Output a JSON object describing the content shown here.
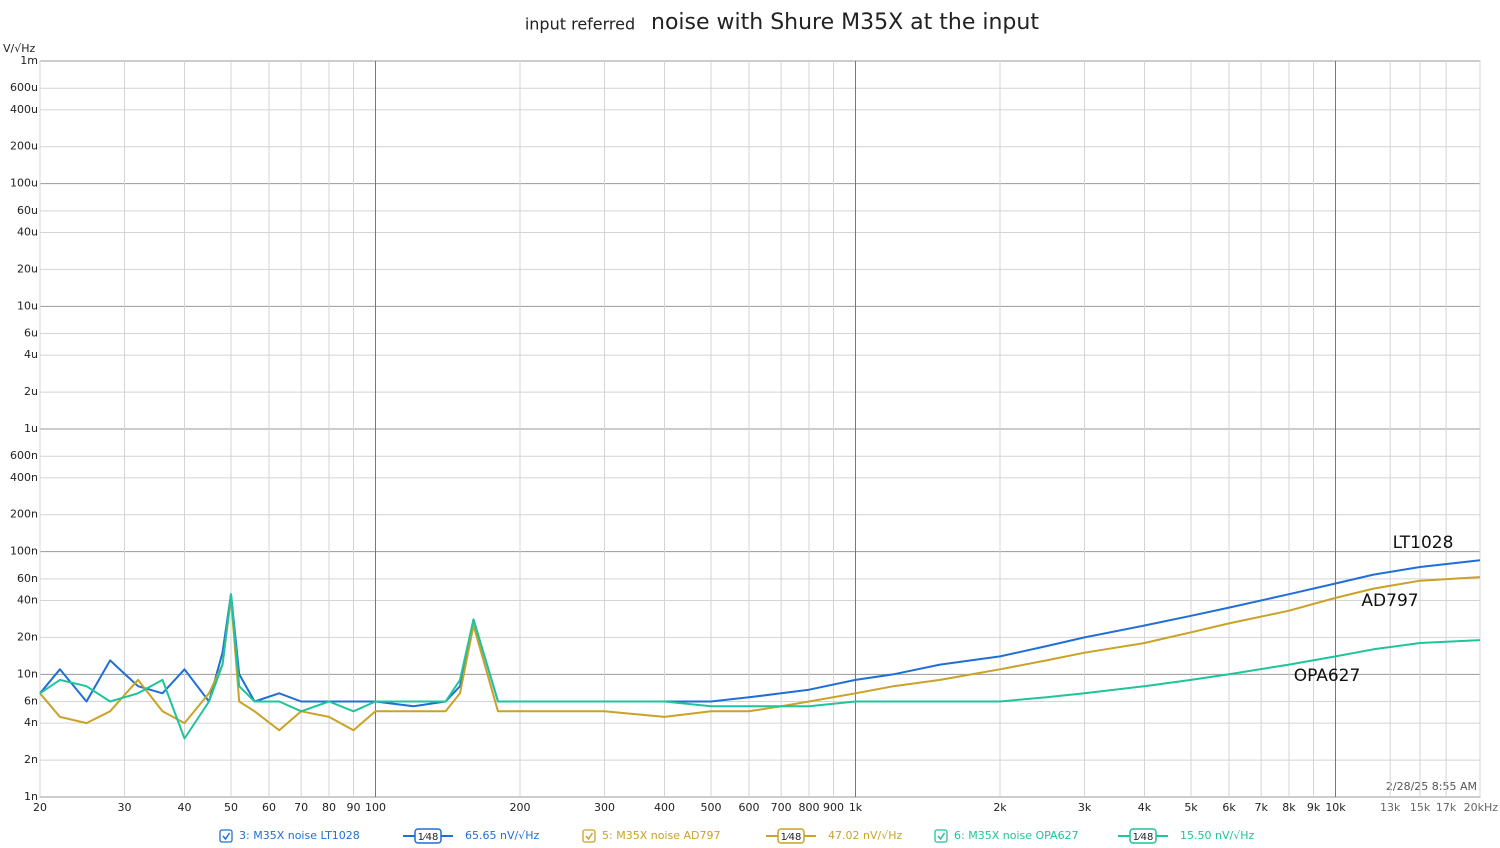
{
  "chart_data": {
    "type": "line",
    "title": "noise with Shure M35X at the input",
    "subtitle": "input referred",
    "y_label": "V/√Hz",
    "timestamp": "2/28/25 8:55 AM",
    "log_x": true,
    "log_y": true,
    "grid": true,
    "xlim": [
      20,
      20000
    ],
    "ylim": [
      1e-09,
      0.001
    ],
    "xticks": [
      20,
      30,
      40,
      50,
      60,
      70,
      80,
      90,
      100,
      200,
      300,
      400,
      500,
      600,
      700,
      800,
      900,
      {
        "value": 1000,
        "label": "1k"
      },
      {
        "value": 2000,
        "label": "2k"
      },
      {
        "value": 3000,
        "label": "3k"
      },
      {
        "value": 4000,
        "label": "4k"
      },
      {
        "value": 5000,
        "label": "5k"
      },
      {
        "value": 6000,
        "label": "6k"
      },
      {
        "value": 7000,
        "label": "7k"
      },
      {
        "value": 8000,
        "label": "8k"
      },
      {
        "value": 9000,
        "label": "9k"
      },
      {
        "value": 10000,
        "label": "10k"
      },
      {
        "value": 13000,
        "label": "13k"
      },
      {
        "value": 15000,
        "label": "15k"
      },
      {
        "value": 17000,
        "label": "17k"
      },
      {
        "value": 20000,
        "label": "20kHz"
      }
    ],
    "yticks": [
      {
        "value": 0.001,
        "label": "1m"
      },
      {
        "value": 0.0006,
        "label": "600u"
      },
      {
        "value": 0.0004,
        "label": "400u"
      },
      {
        "value": 0.0002,
        "label": "200u"
      },
      {
        "value": 0.0001,
        "label": "100u"
      },
      {
        "value": 6e-05,
        "label": "60u"
      },
      {
        "value": 4e-05,
        "label": "40u"
      },
      {
        "value": 2e-05,
        "label": "20u"
      },
      {
        "value": 1e-05,
        "label": "10u"
      },
      {
        "value": 6e-06,
        "label": "6u"
      },
      {
        "value": 4e-06,
        "label": "4u"
      },
      {
        "value": 2e-06,
        "label": "2u"
      },
      {
        "value": 1e-06,
        "label": "1u"
      },
      {
        "value": 6e-07,
        "label": "600n"
      },
      {
        "value": 4e-07,
        "label": "400n"
      },
      {
        "value": 2e-07,
        "label": "200n"
      },
      {
        "value": 1e-07,
        "label": "100n"
      },
      {
        "value": 6e-08,
        "label": "60n"
      },
      {
        "value": 4e-08,
        "label": "40n"
      },
      {
        "value": 2e-08,
        "label": "20n"
      },
      {
        "value": 1e-08,
        "label": "10n"
      },
      {
        "value": 6e-09,
        "label": "6n"
      },
      {
        "value": 4e-09,
        "label": "4n"
      },
      {
        "value": 2e-09,
        "label": "2n"
      },
      {
        "value": 1e-09,
        "label": "1n"
      }
    ],
    "x": [
      20,
      22,
      25,
      28,
      32,
      36,
      40,
      45,
      48,
      50,
      52,
      56,
      63,
      70,
      80,
      90,
      100,
      120,
      140,
      150,
      160,
      180,
      200,
      250,
      300,
      400,
      500,
      600,
      700,
      800,
      1000,
      1200,
      1500,
      2000,
      2500,
      3000,
      4000,
      5000,
      6000,
      8000,
      10000,
      12000,
      15000,
      20000
    ],
    "series": [
      {
        "name": "3: M35X noise LT1028",
        "color": "#1f6fd6",
        "smoothing": "1⁄48",
        "reading": "65.65 nV/√Hz",
        "values": [
          7e-09,
          1.1e-08,
          6e-09,
          1.3e-08,
          8e-09,
          7e-09,
          1.1e-08,
          6e-09,
          1.5e-08,
          4.5e-08,
          1e-08,
          6e-09,
          7e-09,
          6e-09,
          6e-09,
          6e-09,
          6e-09,
          5.5e-09,
          6e-09,
          8e-09,
          2.8e-08,
          6e-09,
          6e-09,
          6e-09,
          6e-09,
          6e-09,
          6e-09,
          6.5e-09,
          7e-09,
          7.5e-09,
          9e-09,
          1e-08,
          1.2e-08,
          1.4e-08,
          1.7e-08,
          2e-08,
          2.5e-08,
          3e-08,
          3.5e-08,
          4.5e-08,
          5.5e-08,
          6.5e-08,
          7.5e-08,
          8.5e-08
        ]
      },
      {
        "name": "5: M35X noise AD797",
        "color": "#c9a227",
        "smoothing": "1⁄48",
        "reading": "47.02 nV/√Hz",
        "values": [
          7e-09,
          4.5e-09,
          4e-09,
          5e-09,
          9e-09,
          5e-09,
          4e-09,
          7e-09,
          1.2e-08,
          4.2e-08,
          6e-09,
          5e-09,
          3.5e-09,
          5e-09,
          4.5e-09,
          3.5e-09,
          5e-09,
          5e-09,
          5e-09,
          7e-09,
          2.5e-08,
          5e-09,
          5e-09,
          5e-09,
          5e-09,
          4.5e-09,
          5e-09,
          5e-09,
          5.5e-09,
          6e-09,
          7e-09,
          8e-09,
          9e-09,
          1.1e-08,
          1.3e-08,
          1.5e-08,
          1.8e-08,
          2.2e-08,
          2.6e-08,
          3.3e-08,
          4.2e-08,
          5e-08,
          5.8e-08,
          6.2e-08
        ]
      },
      {
        "name": "6: M35X noise OPA627",
        "color": "#1fc49a",
        "smoothing": "1⁄48",
        "reading": "15.50 nV/√Hz",
        "values": [
          7e-09,
          9e-09,
          8e-09,
          6e-09,
          7e-09,
          9e-09,
          3e-09,
          6e-09,
          1.2e-08,
          4.5e-08,
          8e-09,
          6e-09,
          6e-09,
          5e-09,
          6e-09,
          5e-09,
          6e-09,
          6e-09,
          6e-09,
          9e-09,
          2.8e-08,
          6e-09,
          6e-09,
          6e-09,
          6e-09,
          6e-09,
          5.5e-09,
          5.5e-09,
          5.5e-09,
          5.5e-09,
          6e-09,
          6e-09,
          6e-09,
          6e-09,
          6.5e-09,
          7e-09,
          8e-09,
          9e-09,
          1e-08,
          1.2e-08,
          1.4e-08,
          1.6e-08,
          1.8e-08,
          1.9e-08
        ]
      }
    ],
    "annotations": [
      "LT1028",
      "AD797",
      "OPA627"
    ]
  }
}
